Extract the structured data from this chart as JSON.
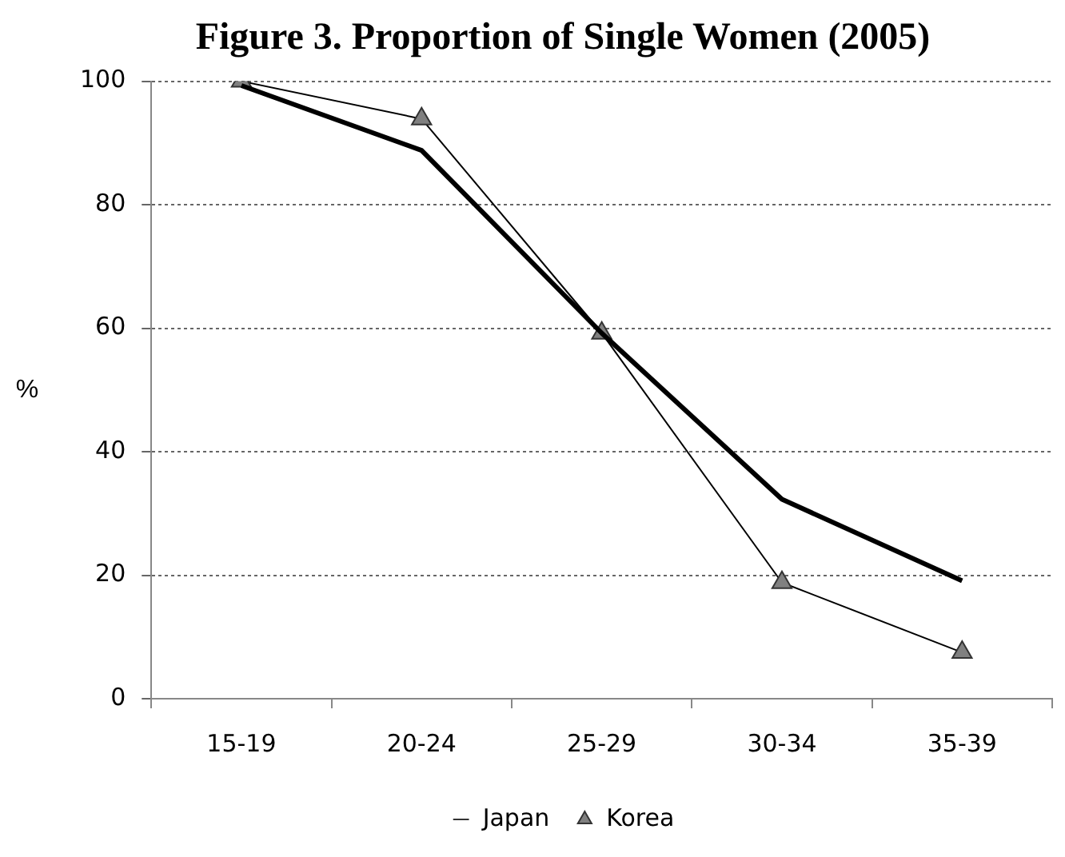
{
  "chart_data": {
    "type": "line",
    "title": "Figure 3. Proportion of Single Women (2005)",
    "ylabel": "%",
    "categories": [
      "15-19",
      "20-24",
      "25-29",
      "30-34",
      "35-39"
    ],
    "series": [
      {
        "name": "Japan",
        "color": "#000000",
        "marker": "none",
        "values": [
          99.3,
          88.8,
          59.2,
          32.3,
          19.1
        ]
      },
      {
        "name": "Korea",
        "color": "#000000",
        "marker": "triangle",
        "values": [
          100,
          93.9,
          59.2,
          18.8,
          7.5
        ]
      }
    ],
    "ylim": [
      0,
      100
    ],
    "yticks": [
      0,
      20,
      40,
      60,
      80,
      100
    ],
    "grid": "y",
    "legend": "bottom"
  }
}
